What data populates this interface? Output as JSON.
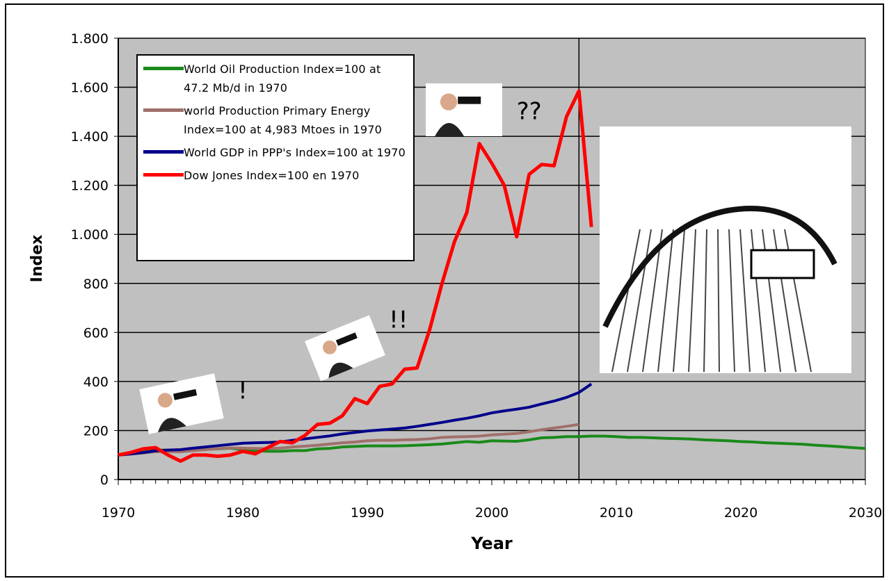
{
  "chart_data": {
    "type": "line",
    "x_label": "Year",
    "y_label": "Index",
    "x": [
      1970,
      1971,
      1972,
      1973,
      1974,
      1975,
      1976,
      1977,
      1978,
      1979,
      1980,
      1981,
      1982,
      1983,
      1984,
      1985,
      1986,
      1987,
      1988,
      1989,
      1990,
      1991,
      1992,
      1993,
      1994,
      1995,
      1996,
      1997,
      1998,
      1999,
      2000,
      2001,
      2002,
      2003,
      2004,
      2005,
      2006,
      2007,
      2008,
      2009,
      2010,
      2011,
      2012,
      2013,
      2014,
      2015,
      2016,
      2017,
      2018,
      2019,
      2020,
      2021,
      2022,
      2023,
      2024,
      2025,
      2026,
      2027,
      2028,
      2029,
      2030
    ],
    "series": [
      {
        "name": "World Oil Production Index=100 at 47.2 Mb/d in 1970",
        "color": "#1a8a1a",
        "values": [
          100,
          105,
          112,
          120,
          120,
          115,
          120,
          123,
          125,
          128,
          122,
          118,
          115,
          115,
          118,
          118,
          125,
          127,
          133,
          135,
          137,
          137,
          137,
          138,
          140,
          142,
          145,
          150,
          155,
          152,
          158,
          157,
          156,
          162,
          170,
          172,
          175,
          175,
          177,
          177,
          175,
          172,
          172,
          170,
          168,
          167,
          165,
          162,
          160,
          158,
          155,
          153,
          150,
          148,
          146,
          144,
          140,
          137,
          134,
          130,
          127
        ]
      },
      {
        "name": "world Production Primary Energy Index=100 at 4,983 Mtoes in 1970",
        "color": "#a0706a",
        "values": [
          100,
          104,
          108,
          114,
          114,
          113,
          118,
          122,
          126,
          129,
          128,
          127,
          126,
          128,
          133,
          136,
          140,
          145,
          150,
          153,
          158,
          160,
          160,
          162,
          163,
          166,
          172,
          174,
          175,
          177,
          182,
          185,
          188,
          195,
          203,
          210,
          217,
          225,
          null,
          null,
          null,
          null,
          null,
          null,
          null,
          null,
          null,
          null,
          null,
          null,
          null,
          null,
          null,
          null,
          null,
          null,
          null,
          null,
          null,
          null,
          null
        ]
      },
      {
        "name": "World GDP in PPP's Index=100 at 1970",
        "color": "#00008b",
        "values": [
          100,
          104,
          110,
          117,
          120,
          122,
          128,
          133,
          138,
          143,
          148,
          150,
          151,
          153,
          160,
          166,
          172,
          178,
          186,
          192,
          198,
          202,
          206,
          210,
          217,
          225,
          233,
          242,
          250,
          260,
          272,
          280,
          287,
          295,
          308,
          320,
          335,
          355,
          390,
          null,
          null,
          null,
          null,
          null,
          null,
          null,
          null,
          null,
          null,
          null,
          null,
          null,
          null,
          null,
          null,
          null,
          null,
          null,
          null,
          null,
          null
        ]
      },
      {
        "name": "Dow Jones Index=100 en 1970",
        "color": "#ff0000",
        "values": [
          100,
          110,
          125,
          130,
          100,
          75,
          100,
          100,
          95,
          100,
          115,
          105,
          130,
          155,
          150,
          180,
          225,
          230,
          260,
          330,
          310,
          380,
          390,
          450,
          455,
          610,
          800,
          970,
          1090,
          1370,
          1290,
          1200,
          990,
          1245,
          1285,
          1280,
          1480,
          1585,
          1030,
          null,
          null,
          null,
          null,
          null,
          null,
          null,
          null,
          null,
          null,
          null,
          null,
          null,
          null,
          null,
          null,
          null,
          null,
          null,
          null,
          null,
          null
        ]
      }
    ],
    "xlim": [
      1970,
      2030
    ],
    "xticks": [
      1970,
      1980,
      1990,
      2000,
      2010,
      2020,
      2030
    ],
    "ylim": [
      0,
      1800
    ],
    "yticks": [
      0,
      200,
      400,
      600,
      800,
      {
        "value": 1000,
        "label": "1.000"
      },
      {
        "value": 1200,
        "label": "1.200"
      },
      {
        "value": 1400,
        "label": "1.400"
      },
      {
        "value": 1600,
        "label": "1.600"
      },
      {
        "value": 1800,
        "label": "1.800"
      }
    ],
    "grid": true,
    "vline": 2007,
    "annotations": [
      {
        "text": "!",
        "x": 1980,
        "y": 330
      },
      {
        "text": "!!",
        "x": 1992.5,
        "y": 620
      },
      {
        "text": "??",
        "x": 2003,
        "y": 1470
      }
    ]
  }
}
